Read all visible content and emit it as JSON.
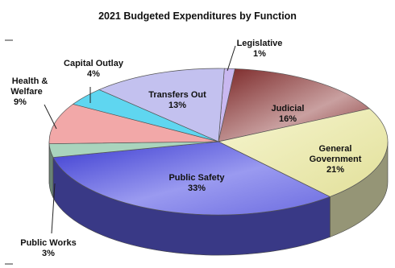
{
  "chart_data": {
    "type": "pie",
    "title": "2021 Budgeted Expenditures by Function",
    "slices": [
      {
        "name": "Legislative",
        "value": 1,
        "pct_label": "1%",
        "color": "#c9b8f0"
      },
      {
        "name": "Judicial",
        "value": 16,
        "pct_label": "16%",
        "color": "#9b4a4a"
      },
      {
        "name": "General Government",
        "value": 21,
        "pct_label": "21%",
        "color": "#f1f0be"
      },
      {
        "name": "Public Safety",
        "value": 33,
        "pct_label": "33%",
        "color": "#5c5cd8"
      },
      {
        "name": "Public Works",
        "value": 3,
        "pct_label": "3%",
        "color": "#a9d4bd"
      },
      {
        "name": "Health & Welfare",
        "value": 9,
        "pct_label": "9%",
        "color": "#f2a8a8"
      },
      {
        "name": "Capital Outlay",
        "value": 4,
        "pct_label": "4%",
        "color": "#5fd6f0"
      },
      {
        "name": "Transfers Out",
        "value": 13,
        "pct_label": "13%",
        "color": "#c3c1ef"
      }
    ]
  }
}
